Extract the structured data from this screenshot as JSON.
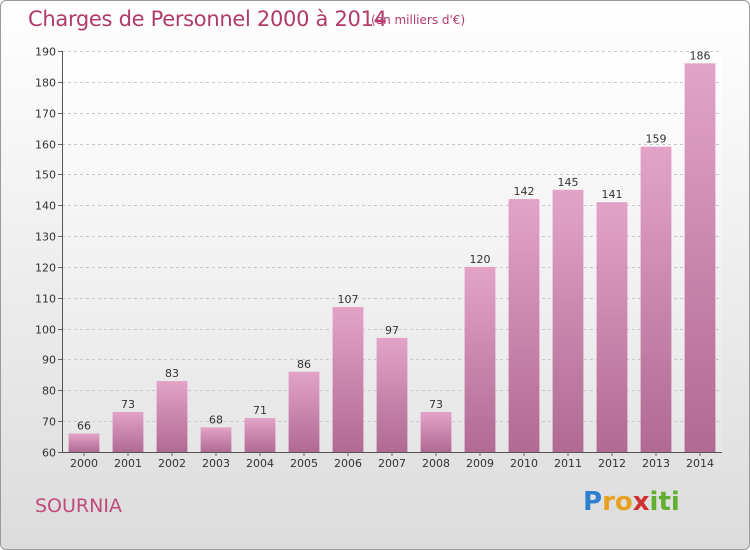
{
  "title": "Charges de Personnel 2000 à 2014",
  "subtitle": "(en milliers d'€)",
  "place": "SOURNIA",
  "logo": {
    "text": "Proxiti",
    "letters": [
      {
        "ch": "P",
        "color": "#2f7fd0"
      },
      {
        "ch": "r",
        "color": "#e8a020"
      },
      {
        "ch": "o",
        "color": "#e8a020"
      },
      {
        "ch": "x",
        "color": "#d03030"
      },
      {
        "ch": "i",
        "color": "#60b030"
      },
      {
        "ch": "t",
        "color": "#60b030"
      },
      {
        "ch": "i",
        "color": "#60b030"
      }
    ]
  },
  "colors": {
    "bar_top": "#e3a3c7",
    "bar_bottom": "#b06a94",
    "title": "#b03a6a"
  },
  "chart_data": {
    "type": "bar",
    "title": "Charges de Personnel 2000 à 2014",
    "subtitle": "(en milliers d'€)",
    "categories": [
      "2000",
      "2001",
      "2002",
      "2003",
      "2004",
      "2005",
      "2006",
      "2007",
      "2008",
      "2009",
      "2010",
      "2011",
      "2012",
      "2013",
      "2014"
    ],
    "values": [
      66,
      73,
      83,
      68,
      71,
      86,
      107,
      97,
      73,
      120,
      142,
      145,
      141,
      159,
      186
    ],
    "ylim": [
      60,
      190
    ],
    "yticks": [
      60,
      70,
      80,
      90,
      100,
      110,
      120,
      130,
      140,
      150,
      160,
      170,
      180,
      190
    ],
    "grid": true,
    "xlabel": "",
    "ylabel": ""
  }
}
